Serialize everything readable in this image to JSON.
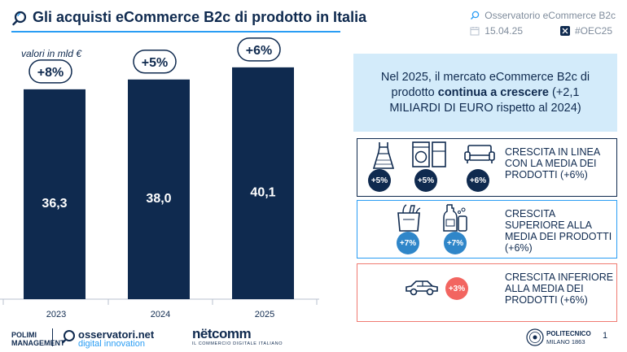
{
  "header": {
    "title": "Gli acquisti eCommerce B2c di prodotto in Italia",
    "source": "Osservatorio eCommerce B2c",
    "date": "15.04.25",
    "hashtag": "#OEC25"
  },
  "colors": {
    "navy": "#0f2a4f",
    "accent_blue": "#2a9df4",
    "light_blue": "#d3ebfa",
    "red": "#f26560"
  },
  "chart_data": {
    "type": "bar",
    "title": "",
    "unit_label": "valori in mld €",
    "categories": [
      "2023",
      "2024",
      "2025"
    ],
    "values": [
      36.3,
      38.0,
      40.1
    ],
    "value_labels": [
      "36,3",
      "38,0",
      "40,1"
    ],
    "growth_labels": [
      "+8%",
      "+5%",
      "+6%"
    ],
    "ylim": [
      0,
      45
    ],
    "grid": false,
    "legend": "none"
  },
  "lead": {
    "text_before": "Nel 2025, il mercato eCommerce B2c di prodotto ",
    "text_bold": "continua a crescere",
    "text_after": " (+2,1 MILIARDI DI EURO rispetto al 2024)"
  },
  "categories_boxes": [
    {
      "text": "CRESCITA IN LINEA CON LA MEDIA DEI PRODOTTI (+6%)",
      "items": [
        {
          "icon": "dress-icon",
          "badge": "+5%"
        },
        {
          "icon": "appliances-icon",
          "badge": "+5%"
        },
        {
          "icon": "sofa-icon",
          "badge": "+6%"
        }
      ]
    },
    {
      "text": "CRESCITA SUPERIORE ALLA MEDIA DEI PRODOTTI (+6%)",
      "items": [
        {
          "icon": "grocery-bag-icon",
          "badge": "+7%"
        },
        {
          "icon": "cleaning-products-icon",
          "badge": "+7%"
        }
      ]
    },
    {
      "text": "CRESCITA INFERIORE ALLA MEDIA DEI PRODOTTI (+6%)",
      "items": [
        {
          "icon": "car-icon",
          "badge": "+3%"
        }
      ]
    }
  ],
  "footer": {
    "polimi_line1": "POLIMI",
    "polimi_line2": "MANAGEMENT",
    "observatori_line1": "osservatori.net",
    "observatori_line2": "digital innovation",
    "netcomm": "nëtcomm",
    "netcomm_sub": "IL COMMERCIO DIGITALE ITALIANO",
    "politecnico_line1": "POLITECNICO",
    "politecnico_line2": "MILANO 1863",
    "page_number": "1"
  }
}
